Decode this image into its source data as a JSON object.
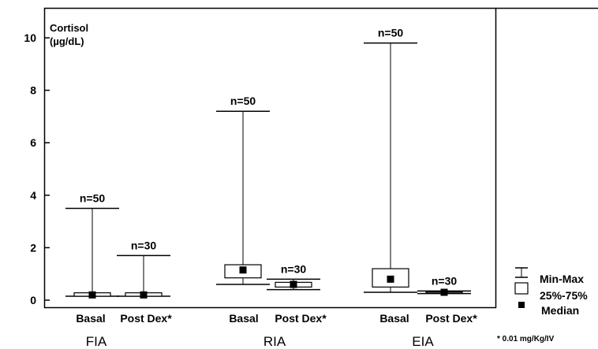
{
  "chart_data": {
    "type": "boxplot",
    "ylabel_line1": "Cortisol",
    "ylabel_line2": "(µg/dL)",
    "ylim": [
      0,
      11
    ],
    "yticks": [
      "0",
      "2",
      "4",
      "6",
      "8",
      "10"
    ],
    "groups": [
      "FIA",
      "RIA",
      "EIA"
    ],
    "categories": [
      "Basal",
      "Post Dex*",
      "Basal",
      "Post Dex*",
      "Basal",
      "Post Dex*"
    ],
    "boxes": [
      {
        "group": "FIA",
        "category": "Basal",
        "n": "n=50",
        "min": 0.15,
        "q1": 0.15,
        "median": 0.2,
        "q3": 0.28,
        "max": 3.5
      },
      {
        "group": "FIA",
        "category": "Post Dex*",
        "n": "n=30",
        "min": 0.15,
        "q1": 0.15,
        "median": 0.2,
        "q3": 0.28,
        "max": 1.7
      },
      {
        "group": "RIA",
        "category": "Basal",
        "n": "n=50",
        "min": 0.6,
        "q1": 0.85,
        "median": 1.15,
        "q3": 1.35,
        "max": 7.2
      },
      {
        "group": "RIA",
        "category": "Post Dex*",
        "n": "n=30",
        "min": 0.4,
        "q1": 0.5,
        "median": 0.6,
        "q3": 0.68,
        "max": 0.8
      },
      {
        "group": "EIA",
        "category": "Basal",
        "n": "n=50",
        "min": 0.3,
        "q1": 0.5,
        "median": 0.8,
        "q3": 1.2,
        "max": 9.8
      },
      {
        "group": "EIA",
        "category": "Post Dex*",
        "n": "n=30",
        "min": 0.25,
        "q1": 0.28,
        "median": 0.3,
        "q3": 0.32,
        "max": 0.35
      }
    ],
    "legend": [
      "Min-Max",
      "25%-75%",
      "Median"
    ],
    "footnote": "* 0.01 mg/Kg/IV"
  }
}
